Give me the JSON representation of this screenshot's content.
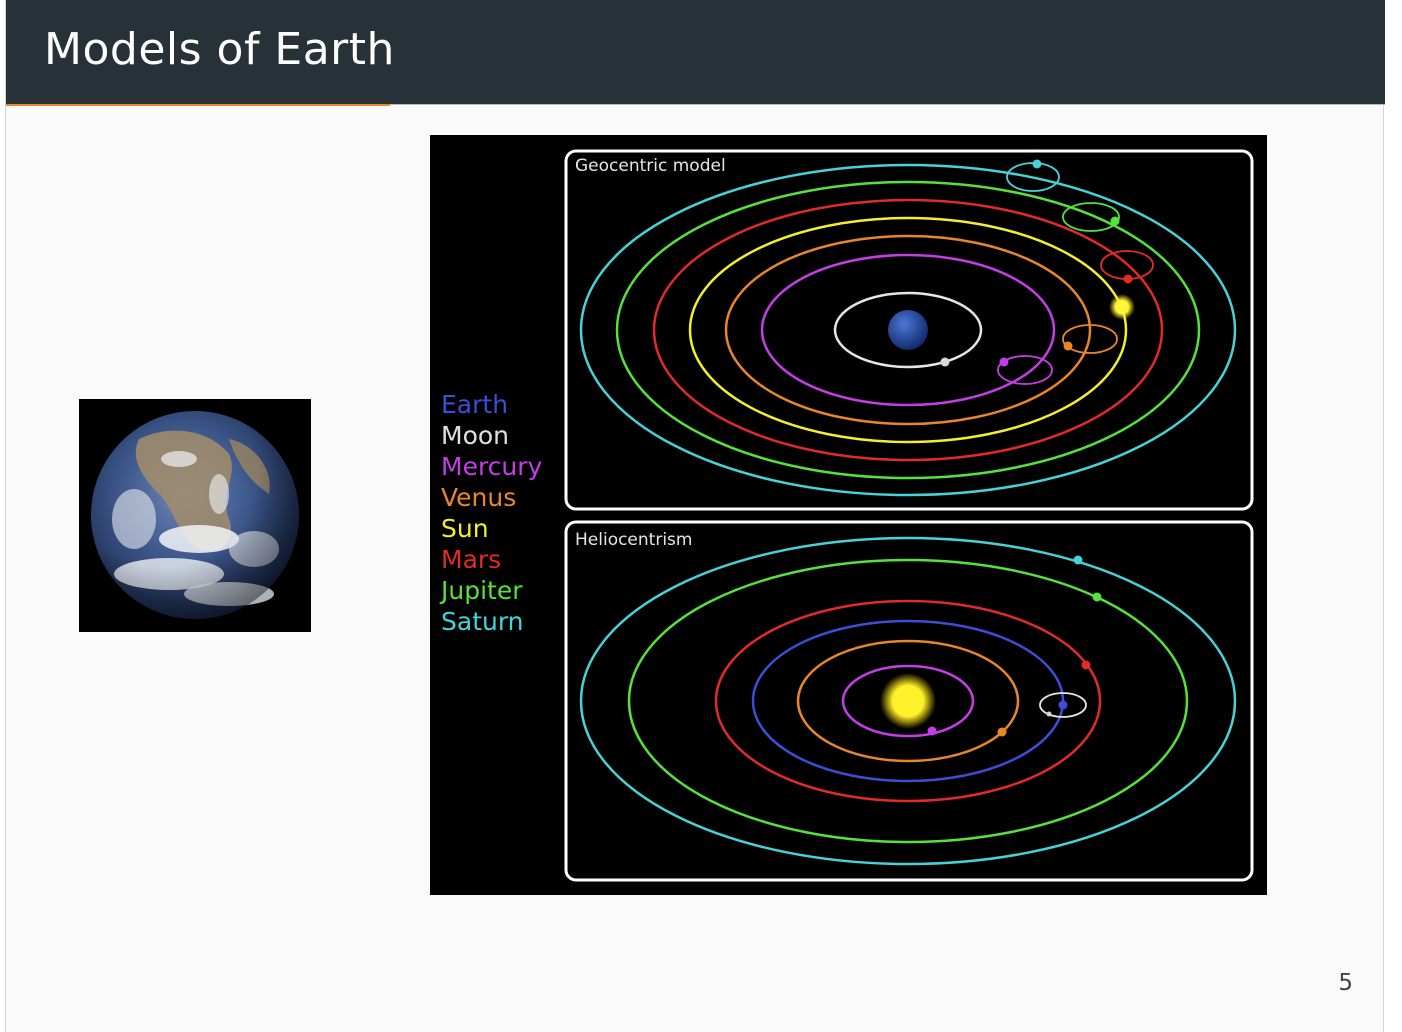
{
  "slide": {
    "title": "Models of Earth",
    "page_number": "5"
  },
  "diagram": {
    "geocentric_label": "Geocentric model",
    "heliocentric_label": "Heliocentrism",
    "legend": [
      {
        "name": "Earth",
        "color": "#3b4fd6"
      },
      {
        "name": "Moon",
        "color": "#e0e0e0"
      },
      {
        "name": "Mercury",
        "color": "#c43ee6"
      },
      {
        "name": "Venus",
        "color": "#e8862a"
      },
      {
        "name": "Sun",
        "color": "#f4ee2c"
      },
      {
        "name": "Mars",
        "color": "#e12a2a"
      },
      {
        "name": "Jupiter",
        "color": "#55e23a"
      },
      {
        "name": "Saturn",
        "color": "#46d3d8"
      }
    ]
  },
  "images": {
    "earth_photo": "earth-globe"
  }
}
